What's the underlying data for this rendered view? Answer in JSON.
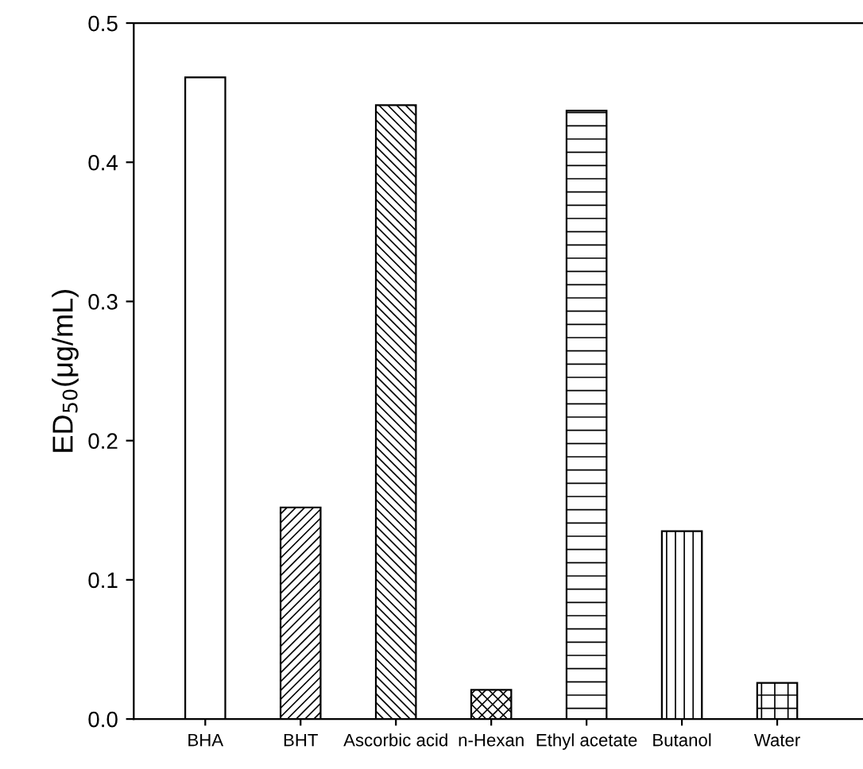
{
  "chart_data": {
    "type": "bar",
    "ylabel": "ED$_{50}$(μg/mL)",
    "categories": [
      "BHA",
      "BHT",
      "Ascorbic acid",
      "n-Hexan",
      "Ethyl acetate",
      "Butanol",
      "Water"
    ],
    "values": [
      0.461,
      0.152,
      0.441,
      0.021,
      0.437,
      0.135,
      0.026
    ],
    "ylim": [
      0.0,
      0.5
    ],
    "yticks": [
      {
        "value": 0,
        "label": "0.0"
      },
      0.1,
      0.2,
      0.3,
      0.4,
      0.5
    ],
    "grid": false
  }
}
